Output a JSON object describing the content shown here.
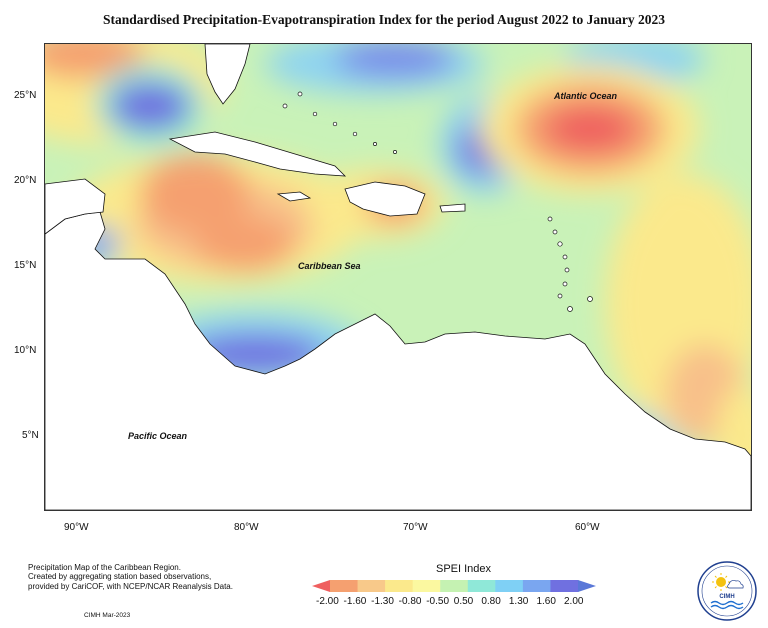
{
  "title": "Standardised Precipitation-Evapotranspiration Index for the period August 2022 to January 2023",
  "latitude_labels": [
    "25°N",
    "20°N",
    "15°N",
    "10°N",
    "5°N"
  ],
  "longitude_labels": [
    "90°W",
    "80°W",
    "70°W",
    "60°W"
  ],
  "ocean_labels": {
    "atlantic": "Atlantic Ocean",
    "caribbean": "Caribbean Sea",
    "pacific": "Pacific Ocean"
  },
  "footnote": {
    "line1": "Precipitation Map of the Caribbean Region.",
    "line2": "Created by aggregating station based observations,",
    "line3": "provided by CariCOF, with NCEP/NCAR Reanalysis Data.",
    "credit": "CIMH Mar-2023"
  },
  "legend": {
    "title": "SPEI Index",
    "ticks": [
      "-2.00",
      "-1.60",
      "-1.30",
      "-0.80",
      "-0.50",
      "0.50",
      "0.80",
      "1.30",
      "1.60",
      "2.00"
    ],
    "colors": [
      "#ef5f5f",
      "#f5a070",
      "#f8c98a",
      "#fbe98c",
      "#fbf8a0",
      "#c5f2b2",
      "#8fe8d8",
      "#7fd0f5",
      "#7aa6f0",
      "#7070e0",
      "#5a78d8"
    ]
  },
  "logo": {
    "text": "CIMH"
  }
}
